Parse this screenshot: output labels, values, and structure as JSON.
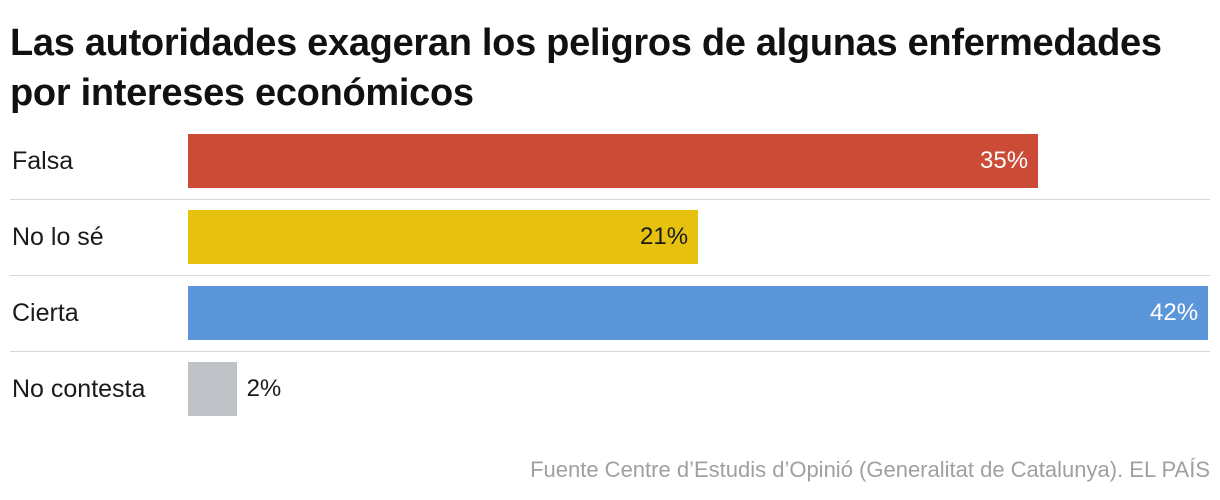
{
  "title": "Las autoridades exageran los peligros de algunas enfermedades por intereses económicos",
  "source": "Fuente Centre d’Estudis d’Opinió (Generalitat de Catalunya). EL PAÍS",
  "chart_data": {
    "type": "bar",
    "orientation": "horizontal",
    "title": "Las autoridades exageran los peligros de algunas enfermedades por intereses económicos",
    "categories": [
      "Falsa",
      "No lo sé",
      "Cierta",
      "No contesta"
    ],
    "values": [
      35,
      21,
      42,
      2
    ],
    "value_labels": [
      "35%",
      "21%",
      "42%",
      "2%"
    ],
    "colors": [
      "#cc4b37",
      "#e6c20f",
      "#5b95da",
      "#bfc3c7"
    ],
    "value_label_colors": [
      "#ffffff",
      "#1a1a1a",
      "#ffffff",
      "#1a1a1a"
    ],
    "value_label_position": [
      "inside",
      "inside",
      "inside",
      "outside"
    ],
    "xlim": [
      0,
      42
    ],
    "grid": false,
    "legend": "none",
    "xlabel": "",
    "ylabel": ""
  }
}
